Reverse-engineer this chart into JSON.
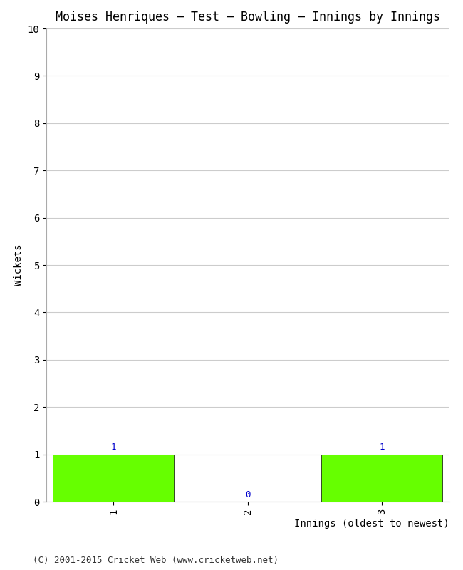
{
  "title": "Moises Henriques – Test – Bowling – Innings by Innings",
  "xlabel": "Innings (oldest to newest)",
  "ylabel": "Wickets",
  "categories": [
    "1",
    "2",
    "3"
  ],
  "values": [
    1,
    0,
    1
  ],
  "bar_color": "#66ff00",
  "bar_edgecolor": "#000000",
  "ylim": [
    0,
    10
  ],
  "yticks": [
    0,
    1,
    2,
    3,
    4,
    5,
    6,
    7,
    8,
    9,
    10
  ],
  "label_color": "#0000cc",
  "background_color": "#ffffff",
  "grid_color": "#cccccc",
  "footer": "(C) 2001-2015 Cricket Web (www.cricketweb.net)",
  "title_fontsize": 12,
  "axis_label_fontsize": 10,
  "tick_fontsize": 10,
  "bar_label_fontsize": 9,
  "footer_fontsize": 9
}
